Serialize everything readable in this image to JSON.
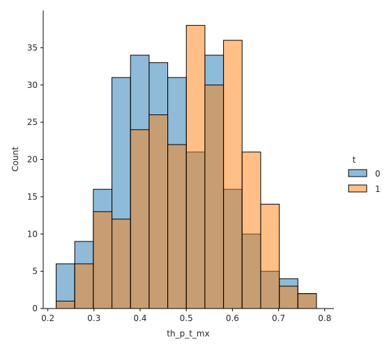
{
  "chart_data": {
    "type": "bar",
    "subtype": "overlapping-histogram",
    "xlabel": "th_p_t_mx",
    "ylabel": "Count",
    "xlim": [
      0.19,
      0.82
    ],
    "ylim": [
      0,
      40
    ],
    "xticks": [
      "0.2",
      "0.3",
      "0.4",
      "0.5",
      "0.6",
      "0.7",
      "0.8"
    ],
    "yticks": [
      "0",
      "5",
      "10",
      "15",
      "20",
      "25",
      "30",
      "35"
    ],
    "bin_edges": [
      0.218,
      0.2583,
      0.2986,
      0.3389,
      0.3792,
      0.4195,
      0.4598,
      0.5001,
      0.5404,
      0.5807,
      0.621,
      0.6613,
      0.7016,
      0.7419,
      0.7822
    ],
    "legend": {
      "title": "t",
      "position": "right"
    },
    "series": [
      {
        "name": "0",
        "color": "#1f77b4",
        "values": [
          6,
          9,
          16,
          31,
          34,
          33,
          31,
          21,
          34,
          16,
          10,
          5,
          4,
          2
        ]
      },
      {
        "name": "1",
        "color": "#ff7f0e",
        "values": [
          1,
          6,
          13,
          12,
          24,
          26,
          22,
          38,
          30,
          36,
          21,
          14,
          3,
          2
        ]
      }
    ],
    "grid": false
  }
}
